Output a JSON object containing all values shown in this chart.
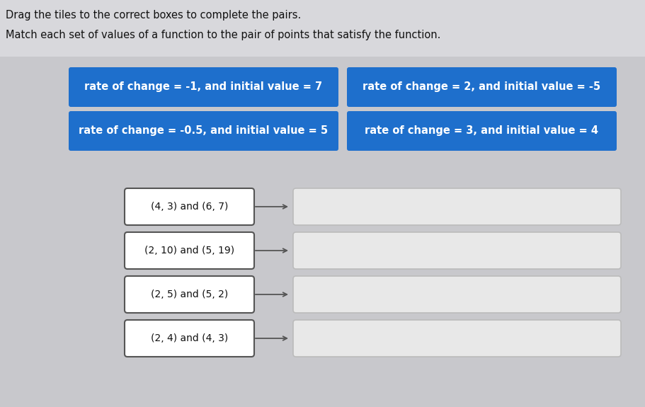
{
  "title1": "Drag the tiles to the correct boxes to complete the pairs.",
  "title2": "Match each set of values of a function to the pair of points that satisfy the function.",
  "blue_tiles": [
    "rate of change = -1, and initial value = 7",
    "rate of change = 2, and initial value = -5",
    "rate of change = -0.5, and initial value = 5",
    "rate of change = 3, and initial value = 4"
  ],
  "left_boxes": [
    "(4, 3) and (6, 7)",
    "(2, 10) and (5, 19)",
    "(2, 5) and (5, 2)",
    "(2, 4) and (4, 3)"
  ],
  "blue_color": "#1e6fcc",
  "blue_text_color": "#ffffff",
  "bg_color": "#c8c8c8",
  "page_bg": "#f0f0f0",
  "text_color": "#111111",
  "left_box_bg": "#ffffff",
  "left_box_border": "#555555",
  "right_box_bg": "#e8e8e8",
  "right_box_border": "#bbbbbb",
  "arrow_color": "#555555",
  "font_size_title": 10.5,
  "font_size_tile": 10.5,
  "font_size_box": 10
}
